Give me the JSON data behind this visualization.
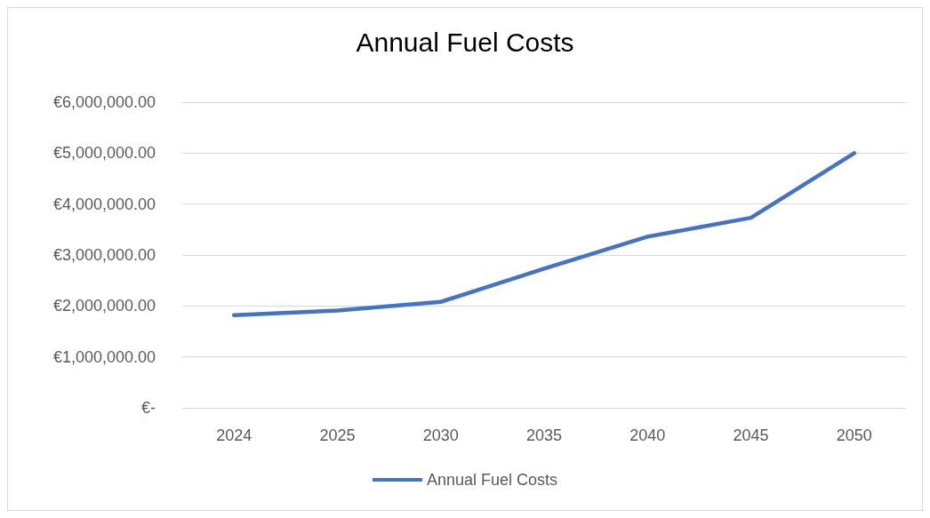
{
  "chart_data": {
    "type": "line",
    "title": "Annual Fuel Costs",
    "categories": [
      "2024",
      "2025",
      "2030",
      "2035",
      "2040",
      "2045",
      "2050"
    ],
    "series": [
      {
        "name": "Annual Fuel Costs",
        "color": "#4472c4",
        "values": [
          1820000,
          1910000,
          2080000,
          2730000,
          3360000,
          3730000,
          5000000
        ]
      }
    ],
    "ylim": [
      0,
      6000000
    ],
    "yticks": [
      {
        "value": 0,
        "label": "€-"
      },
      {
        "value": 1000000,
        "label": "€1,000,000.00"
      },
      {
        "value": 2000000,
        "label": "€2,000,000.00"
      },
      {
        "value": 3000000,
        "label": "€3,000,000.00"
      },
      {
        "value": 4000000,
        "label": "€4,000,000.00"
      },
      {
        "value": 5000000,
        "label": "€5,000,000.00"
      },
      {
        "value": 6000000,
        "label": "€6,000,000.00"
      }
    ],
    "grid": "y",
    "legend": "bottom",
    "marker": "none",
    "line_style": "solid"
  }
}
